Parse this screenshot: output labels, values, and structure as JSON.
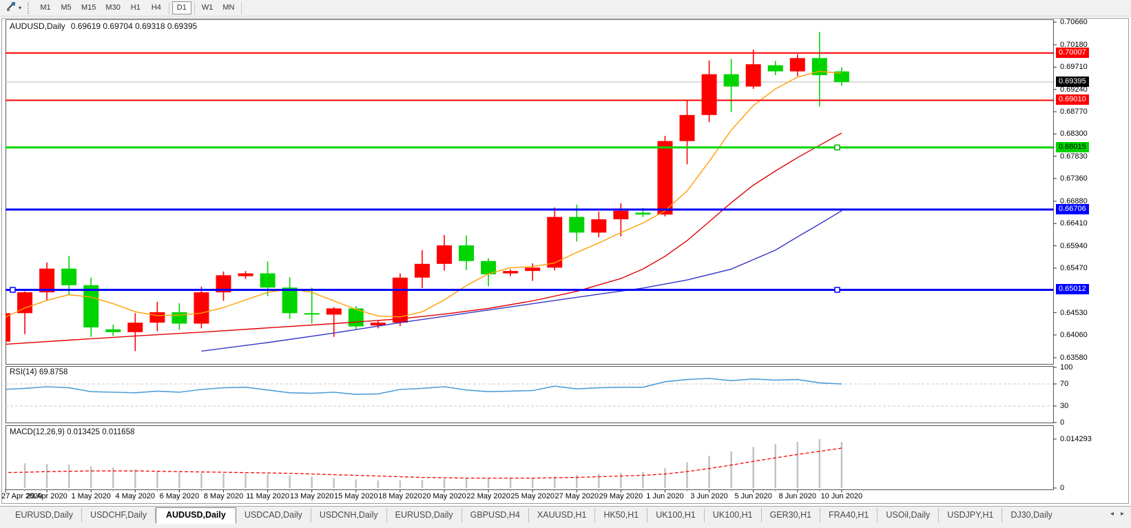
{
  "toolbar": {
    "tool_button": {
      "icon": "chart-tools-icon",
      "dropdown_glyph": "▾"
    },
    "timeframes": [
      {
        "label": "M1",
        "active": false
      },
      {
        "label": "M5",
        "active": false
      },
      {
        "label": "M15",
        "active": false
      },
      {
        "label": "M30",
        "active": false
      },
      {
        "label": "H1",
        "active": false
      },
      {
        "label": "H4",
        "active": false
      },
      {
        "label": "D1",
        "active": true
      },
      {
        "label": "W1",
        "active": false
      },
      {
        "label": "MN",
        "active": false
      }
    ]
  },
  "chart": {
    "title": "AUDUSD,Daily",
    "ohlc": "0.69619 0.69704 0.69318 0.69395"
  },
  "tabs": {
    "scroll_left_glyph": "◂",
    "scroll_right_glyph": "▸",
    "items": [
      {
        "label": "EURUSD,Daily",
        "active": false
      },
      {
        "label": "USDCHF,Daily",
        "active": false
      },
      {
        "label": "AUDUSD,Daily",
        "active": true
      },
      {
        "label": "USDCAD,Daily",
        "active": false
      },
      {
        "label": "USDCNH,Daily",
        "active": false
      },
      {
        "label": "EURUSD,Daily",
        "active": false
      },
      {
        "label": "GBPUSD,H4",
        "active": false
      },
      {
        "label": "XAUUSD,H1",
        "active": false
      },
      {
        "label": "HK50,H1",
        "active": false
      },
      {
        "label": "UK100,H1",
        "active": false
      },
      {
        "label": "UK100,H1",
        "active": false
      },
      {
        "label": "GER30,H1",
        "active": false
      },
      {
        "label": "FRA40,H1",
        "active": false
      },
      {
        "label": "USOil,Daily",
        "active": false
      },
      {
        "label": "USDJPY,H1",
        "active": false
      },
      {
        "label": "DJ30,Daily",
        "active": false
      }
    ]
  },
  "chart_data": {
    "type": "candlestick",
    "symbol": "AUDUSD",
    "period": "Daily",
    "open": 0.69619,
    "high": 0.69704,
    "low": 0.69318,
    "close": 0.69395,
    "colors": {
      "up": "#ff0000",
      "down": "#00d400",
      "current_line": "#b8b8b8",
      "ma_fast": "#ff9f00",
      "ma_mid": "#e00000",
      "ma_slow": "#3434c8",
      "hline_blue": "#0000ff",
      "rsi": "#4f9fd8",
      "rsi_guide": "#c9c9c9",
      "macd_hist": "#c2c2c2",
      "macd_signal": "#ff0000"
    },
    "price_axis": {
      "max": 0.7066,
      "min": 0.6358,
      "ticks": [
        "0.70660",
        "0.70180",
        "0.69710",
        "0.69240",
        "0.68770",
        "0.68300",
        "0.67830",
        "0.67360",
        "0.66880",
        "0.66410",
        "0.65940",
        "0.65470",
        "0.64530",
        "0.64060",
        "0.63580"
      ]
    },
    "x_labels": [
      {
        "label": "27 Apr 2020",
        "bar": 0
      },
      {
        "label": "29 Apr 2020",
        "bar": 2
      },
      {
        "label": "1 May 2020",
        "bar": 4
      },
      {
        "label": "4 May 2020",
        "bar": 6
      },
      {
        "label": "6 May 2020",
        "bar": 8
      },
      {
        "label": "8 May 2020",
        "bar": 10
      },
      {
        "label": "11 May 2020",
        "bar": 12
      },
      {
        "label": "13 May 2020",
        "bar": 14
      },
      {
        "label": "15 May 2020",
        "bar": 16
      },
      {
        "label": "18 May 2020",
        "bar": 18
      },
      {
        "label": "20 May 2020",
        "bar": 20
      },
      {
        "label": "22 May 2020",
        "bar": 22
      },
      {
        "label": "25 May 2020",
        "bar": 24
      },
      {
        "label": "27 May 2020",
        "bar": 26
      },
      {
        "label": "29 May 2020",
        "bar": 28
      },
      {
        "label": "1 Jun 2020",
        "bar": 30
      },
      {
        "label": "3 Jun 2020",
        "bar": 32
      },
      {
        "label": "5 Jun 2020",
        "bar": 34
      },
      {
        "label": "8 Jun 2020",
        "bar": 36
      },
      {
        "label": "10 Jun 2020",
        "bar": 38
      }
    ],
    "bars": [
      {
        "d": "27 Apr",
        "o": 0.6392,
        "h": 0.647,
        "l": 0.6385,
        "c": 0.6452
      },
      {
        "d": "28 Apr",
        "o": 0.6452,
        "h": 0.6498,
        "l": 0.6408,
        "c": 0.6496
      },
      {
        "d": "29 Apr",
        "o": 0.6496,
        "h": 0.6559,
        "l": 0.6478,
        "c": 0.6546
      },
      {
        "d": "30 Apr",
        "o": 0.6546,
        "h": 0.6573,
        "l": 0.649,
        "c": 0.6511
      },
      {
        "d": "1 May",
        "o": 0.6511,
        "h": 0.6527,
        "l": 0.6402,
        "c": 0.6422
      },
      {
        "d": "3 May",
        "o": 0.6418,
        "h": 0.6428,
        "l": 0.6404,
        "c": 0.6412
      },
      {
        "d": "4 May",
        "o": 0.6412,
        "h": 0.6452,
        "l": 0.6372,
        "c": 0.6432
      },
      {
        "d": "5 May",
        "o": 0.6432,
        "h": 0.6476,
        "l": 0.6414,
        "c": 0.6454
      },
      {
        "d": "6 May",
        "o": 0.6454,
        "h": 0.6473,
        "l": 0.6417,
        "c": 0.643
      },
      {
        "d": "7 May",
        "o": 0.643,
        "h": 0.6508,
        "l": 0.642,
        "c": 0.6496
      },
      {
        "d": "8 May",
        "o": 0.6496,
        "h": 0.654,
        "l": 0.6478,
        "c": 0.6532
      },
      {
        "d": "10 May",
        "o": 0.653,
        "h": 0.6541,
        "l": 0.6524,
        "c": 0.6536
      },
      {
        "d": "11 May",
        "o": 0.6536,
        "h": 0.6561,
        "l": 0.6488,
        "c": 0.6506
      },
      {
        "d": "12 May",
        "o": 0.6506,
        "h": 0.6528,
        "l": 0.644,
        "c": 0.6452
      },
      {
        "d": "13 May",
        "o": 0.6452,
        "h": 0.6506,
        "l": 0.643,
        "c": 0.6449
      },
      {
        "d": "14 May",
        "o": 0.6449,
        "h": 0.6465,
        "l": 0.6402,
        "c": 0.6462
      },
      {
        "d": "15 May",
        "o": 0.6462,
        "h": 0.6467,
        "l": 0.6417,
        "c": 0.6424
      },
      {
        "d": "17 May",
        "o": 0.6426,
        "h": 0.6436,
        "l": 0.642,
        "c": 0.6432
      },
      {
        "d": "18 May",
        "o": 0.6432,
        "h": 0.6536,
        "l": 0.6425,
        "c": 0.6527
      },
      {
        "d": "19 May",
        "o": 0.6527,
        "h": 0.6585,
        "l": 0.6505,
        "c": 0.6556
      },
      {
        "d": "20 May",
        "o": 0.6556,
        "h": 0.6617,
        "l": 0.6542,
        "c": 0.6595
      },
      {
        "d": "21 May",
        "o": 0.6595,
        "h": 0.6616,
        "l": 0.6543,
        "c": 0.6562
      },
      {
        "d": "22 May",
        "o": 0.6562,
        "h": 0.6568,
        "l": 0.6509,
        "c": 0.6534
      },
      {
        "d": "24 May",
        "o": 0.6536,
        "h": 0.6545,
        "l": 0.653,
        "c": 0.6541
      },
      {
        "d": "25 May",
        "o": 0.6541,
        "h": 0.6557,
        "l": 0.652,
        "c": 0.6548
      },
      {
        "d": "26 May",
        "o": 0.6548,
        "h": 0.6675,
        "l": 0.6542,
        "c": 0.6655
      },
      {
        "d": "27 May",
        "o": 0.6655,
        "h": 0.6681,
        "l": 0.6603,
        "c": 0.6622
      },
      {
        "d": "28 May",
        "o": 0.6622,
        "h": 0.6666,
        "l": 0.6612,
        "c": 0.665
      },
      {
        "d": "29 May",
        "o": 0.665,
        "h": 0.6684,
        "l": 0.6614,
        "c": 0.6668
      },
      {
        "d": "31 May",
        "o": 0.6664,
        "h": 0.6674,
        "l": 0.6655,
        "c": 0.666
      },
      {
        "d": "1 Jun",
        "o": 0.666,
        "h": 0.6826,
        "l": 0.6656,
        "c": 0.6815
      },
      {
        "d": "2 Jun",
        "o": 0.6815,
        "h": 0.69,
        "l": 0.6766,
        "c": 0.687
      },
      {
        "d": "3 Jun",
        "o": 0.687,
        "h": 0.6985,
        "l": 0.6855,
        "c": 0.6956
      },
      {
        "d": "4 Jun",
        "o": 0.6956,
        "h": 0.6988,
        "l": 0.6876,
        "c": 0.693
      },
      {
        "d": "5 Jun",
        "o": 0.693,
        "h": 0.7008,
        "l": 0.6925,
        "c": 0.6977
      },
      {
        "d": "7 Jun",
        "o": 0.6975,
        "h": 0.6984,
        "l": 0.6954,
        "c": 0.6962
      },
      {
        "d": "8 Jun",
        "o": 0.6962,
        "h": 0.6998,
        "l": 0.6952,
        "c": 0.699
      },
      {
        "d": "9 Jun",
        "o": 0.699,
        "h": 0.7045,
        "l": 0.6888,
        "c": 0.6954
      },
      {
        "d": "10 Jun",
        "o": 0.69619,
        "h": 0.69704,
        "l": 0.69318,
        "c": 0.69395
      }
    ],
    "hlines": [
      {
        "price": 0.70007,
        "label": "0.70007",
        "color": "#ff0000",
        "width": 2,
        "badge_bg": "#ff0000",
        "badge_fg": "#ffffff"
      },
      {
        "price": 0.6901,
        "label": "0.69010",
        "color": "#ff0000",
        "width": 2,
        "badge_bg": "#ff0000",
        "badge_fg": "#ffffff"
      },
      {
        "price": 0.68015,
        "label": "0.68015",
        "color": "#00d400",
        "width": 3,
        "badge_bg": "#00d400",
        "badge_fg": "#000000"
      },
      {
        "price": 0.66706,
        "label": "0.66706",
        "color": "#0000ff",
        "width": 3,
        "badge_bg": "#0000ff",
        "badge_fg": "#ffffff"
      },
      {
        "price": 0.65012,
        "label": "0.65012",
        "color": "#0000ff",
        "width": 3,
        "badge_bg": "#0000ff",
        "badge_fg": "#ffffff"
      }
    ],
    "handles": [
      {
        "price": 0.68015,
        "bar": 37.8,
        "color": "#00b000"
      },
      {
        "price": 0.65012,
        "bar": 0.45,
        "color": "#0000ff"
      },
      {
        "price": 0.65012,
        "bar": 37.8,
        "color": "#0000ff"
      }
    ],
    "current_price": {
      "value": 0.69395,
      "label": "0.69395",
      "badge_bg": "#000000",
      "badge_fg": "#ffffff"
    },
    "ma_lines": [
      {
        "name": "ma-fast-orange",
        "color": "#ff9f00",
        "points": [
          [
            0,
            0.6441
          ],
          [
            1,
            0.6463
          ],
          [
            2,
            0.6479
          ],
          [
            3,
            0.6491
          ],
          [
            4,
            0.6486
          ],
          [
            5,
            0.6472
          ],
          [
            6,
            0.6455
          ],
          [
            7,
            0.6447
          ],
          [
            8,
            0.6448
          ],
          [
            9,
            0.6452
          ],
          [
            10,
            0.6464
          ],
          [
            11,
            0.648
          ],
          [
            12,
            0.6496
          ],
          [
            13,
            0.6503
          ],
          [
            14,
            0.6496
          ],
          [
            15,
            0.6478
          ],
          [
            16,
            0.646
          ],
          [
            17,
            0.6446
          ],
          [
            18,
            0.6444
          ],
          [
            19,
            0.6455
          ],
          [
            20,
            0.648
          ],
          [
            21,
            0.651
          ],
          [
            22,
            0.6535
          ],
          [
            23,
            0.6548
          ],
          [
            24,
            0.655
          ],
          [
            25,
            0.6558
          ],
          [
            26,
            0.658
          ],
          [
            27,
            0.66
          ],
          [
            28,
            0.6622
          ],
          [
            29,
            0.6642
          ],
          [
            30,
            0.6668
          ],
          [
            31,
            0.671
          ],
          [
            32,
            0.6772
          ],
          [
            33,
            0.6838
          ],
          [
            34,
            0.689
          ],
          [
            35,
            0.6925
          ],
          [
            36,
            0.695
          ],
          [
            37,
            0.6962
          ],
          [
            38,
            0.6958
          ]
        ]
      },
      {
        "name": "ma-mid-red",
        "color": "#e00000",
        "points": [
          [
            0,
            0.6386
          ],
          [
            3,
            0.6395
          ],
          [
            6,
            0.6404
          ],
          [
            9,
            0.6412
          ],
          [
            12,
            0.6421
          ],
          [
            15,
            0.643
          ],
          [
            18,
            0.644
          ],
          [
            20,
            0.645
          ],
          [
            22,
            0.6462
          ],
          [
            24,
            0.6478
          ],
          [
            26,
            0.6498
          ],
          [
            28,
            0.6525
          ],
          [
            29,
            0.6545
          ],
          [
            30,
            0.6572
          ],
          [
            31,
            0.6605
          ],
          [
            32,
            0.6645
          ],
          [
            33,
            0.6685
          ],
          [
            34,
            0.6722
          ],
          [
            35,
            0.6752
          ],
          [
            36,
            0.678
          ],
          [
            37,
            0.6806
          ],
          [
            38,
            0.6832
          ]
        ]
      },
      {
        "name": "ma-slow-blue",
        "color": "#3434c8",
        "points": [
          [
            9,
            0.6372
          ],
          [
            12,
            0.639
          ],
          [
            15,
            0.641
          ],
          [
            18,
            0.6432
          ],
          [
            21,
            0.6452
          ],
          [
            24,
            0.6472
          ],
          [
            27,
            0.6492
          ],
          [
            29,
            0.6505
          ],
          [
            31,
            0.6522
          ],
          [
            33,
            0.6545
          ],
          [
            35,
            0.6585
          ],
          [
            36,
            0.6613
          ],
          [
            37,
            0.664
          ],
          [
            38,
            0.6668
          ]
        ]
      }
    ],
    "rsi": {
      "label": "RSI(14) 69.8758",
      "period": 14,
      "value": 69.8758,
      "scale_labels": [
        "100",
        "70",
        "30",
        "0"
      ],
      "scale_values": [
        100,
        70,
        30,
        0
      ],
      "guides": [
        70,
        30
      ],
      "values": [
        60,
        62,
        65,
        63,
        56,
        55,
        54,
        57,
        55,
        60,
        63,
        64,
        59,
        54,
        53,
        55,
        51,
        52,
        60,
        62,
        65,
        59,
        56,
        57,
        58,
        66,
        61,
        63,
        64,
        64,
        74,
        78,
        80,
        76,
        79,
        77,
        78,
        72,
        69.88
      ]
    },
    "macd": {
      "label": "MACD(12,26,9) 0.013425 0.011658",
      "params": "12,26,9",
      "value": 0.013425,
      "signal": 0.011658,
      "axis_labels": [
        "0.014293",
        "0"
      ],
      "axis_values": [
        0.014293,
        0
      ],
      "hist": [
        0.0075,
        0.0072,
        0.007,
        0.0068,
        0.0064,
        0.006,
        0.0055,
        0.005,
        0.0046,
        0.0044,
        0.0043,
        0.0042,
        0.004,
        0.0037,
        0.0033,
        0.0029,
        0.0025,
        0.0022,
        0.0022,
        0.0024,
        0.0027,
        0.0028,
        0.0028,
        0.0028,
        0.0029,
        0.0034,
        0.0038,
        0.0041,
        0.0044,
        0.0047,
        0.0058,
        0.0075,
        0.0094,
        0.0107,
        0.012,
        0.0128,
        0.0135,
        0.014293,
        0.013425
      ],
      "signal_values": [
        0.0045,
        0.0046,
        0.0048,
        0.0049,
        0.005,
        0.005,
        0.005,
        0.0049,
        0.0048,
        0.0047,
        0.0046,
        0.0045,
        0.0044,
        0.0043,
        0.0041,
        0.0039,
        0.0037,
        0.0035,
        0.0033,
        0.0031,
        0.003,
        0.0029,
        0.0029,
        0.0029,
        0.0029,
        0.003,
        0.0031,
        0.0033,
        0.0035,
        0.0037,
        0.0041,
        0.0048,
        0.0057,
        0.0067,
        0.0078,
        0.0088,
        0.0098,
        0.0107,
        0.011658
      ]
    }
  }
}
